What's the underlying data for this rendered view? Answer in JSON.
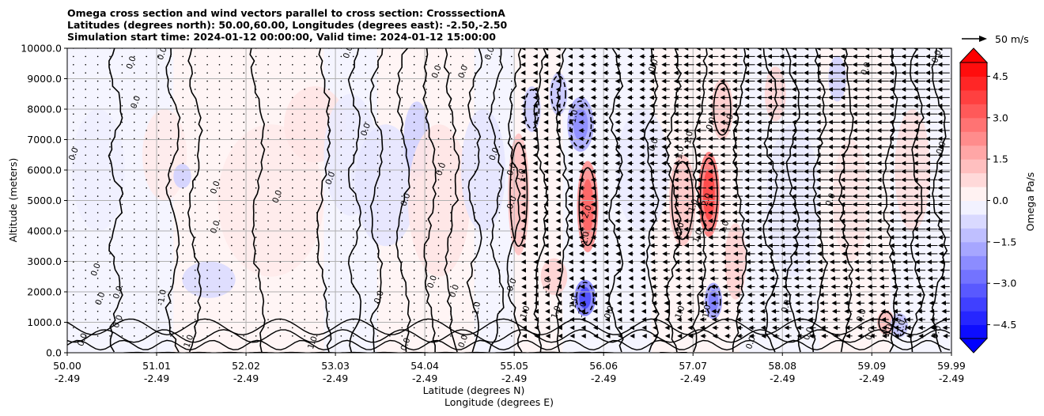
{
  "chart_data": {
    "type": "heatmap",
    "title_lines": [
      "Omega cross section and wind vectors parallel to cross section: CrosssectionA",
      "Latitudes (degrees north): 50.00,60.00, Longitudes (degrees east): -2.50,-2.50",
      "Simulation start time: 2024-01-12 00:00:00, Valid time: 2024-01-12 15:00:00"
    ],
    "ylabel": "Altitude (meters)",
    "xlabel_lat": "Latitude (degrees N)",
    "xlabel_lon": "Longitude (degrees E)",
    "ylim": [
      0,
      10000
    ],
    "xlim": [
      50.0,
      59.99
    ],
    "y_ticks": [
      {
        "value": 0,
        "label": "0.0"
      },
      {
        "value": 1000,
        "label": "1000.0"
      },
      {
        "value": 2000,
        "label": "2000.0"
      },
      {
        "value": 3000,
        "label": "3000.0"
      },
      {
        "value": 4000,
        "label": "4000.0"
      },
      {
        "value": 5000,
        "label": "5000.0"
      },
      {
        "value": 6000,
        "label": "6000.0"
      },
      {
        "value": 7000,
        "label": "7000.0"
      },
      {
        "value": 8000,
        "label": "8000.0"
      },
      {
        "value": 9000,
        "label": "9000.0"
      },
      {
        "value": 10000,
        "label": "10000.0"
      }
    ],
    "x_ticks": [
      {
        "value": 50.0,
        "lat": "50.00",
        "lon": "-2.49"
      },
      {
        "value": 51.01,
        "lat": "51.01",
        "lon": "-2.49"
      },
      {
        "value": 52.02,
        "lat": "52.02",
        "lon": "-2.49"
      },
      {
        "value": 53.03,
        "lat": "53.03",
        "lon": "-2.49"
      },
      {
        "value": 54.04,
        "lat": "54.04",
        "lon": "-2.49"
      },
      {
        "value": 55.05,
        "lat": "55.05",
        "lon": "-2.49"
      },
      {
        "value": 56.06,
        "lat": "56.06",
        "lon": "-2.49"
      },
      {
        "value": 57.07,
        "lat": "57.07",
        "lon": "-2.49"
      },
      {
        "value": 58.08,
        "lat": "58.08",
        "lon": "-2.49"
      },
      {
        "value": 59.09,
        "lat": "59.09",
        "lon": "-2.49"
      },
      {
        "value": 59.99,
        "lat": "59.99",
        "lon": "-2.49"
      }
    ],
    "colorbar": {
      "label": "Omega Pa/s",
      "vmin": -5.0,
      "vmax": 5.0,
      "step": 0.5,
      "ticks": [
        {
          "value": -4.5,
          "label": "−4.5"
        },
        {
          "value": -3.0,
          "label": "−3.0"
        },
        {
          "value": -1.5,
          "label": "−1.5"
        },
        {
          "value": 0.0,
          "label": "0.0"
        },
        {
          "value": 1.5,
          "label": "1.5"
        },
        {
          "value": 3.0,
          "label": "3.0"
        },
        {
          "value": 4.5,
          "label": "4.5"
        }
      ]
    },
    "quiver_key": {
      "label": "50 m/s",
      "speed": 50
    },
    "omega_features": [
      {
        "lat": 50.35,
        "alt": 6000,
        "dlat": 0.3,
        "dalt": 4000,
        "value": -0.3
      },
      {
        "lat": 51.1,
        "alt": 6500,
        "dlat": 0.25,
        "dalt": 3000,
        "value": 0.4
      },
      {
        "lat": 51.3,
        "alt": 5800,
        "dlat": 0.1,
        "dalt": 800,
        "value": -0.9
      },
      {
        "lat": 51.6,
        "alt": 2400,
        "dlat": 0.3,
        "dalt": 1200,
        "value": -0.7
      },
      {
        "lat": 52.3,
        "alt": 5000,
        "dlat": 0.6,
        "dalt": 5000,
        "value": 0.4
      },
      {
        "lat": 52.8,
        "alt": 7500,
        "dlat": 0.35,
        "dalt": 2500,
        "value": 0.5
      },
      {
        "lat": 53.2,
        "alt": 6500,
        "dlat": 0.3,
        "dalt": 4000,
        "value": -0.4
      },
      {
        "lat": 53.6,
        "alt": 5500,
        "dlat": 0.35,
        "dalt": 4000,
        "value": -0.5
      },
      {
        "lat": 53.95,
        "alt": 7000,
        "dlat": 0.15,
        "dalt": 2500,
        "value": -0.9
      },
      {
        "lat": 54.2,
        "alt": 5000,
        "dlat": 0.35,
        "dalt": 5000,
        "value": 0.5
      },
      {
        "lat": 54.7,
        "alt": 6000,
        "dlat": 0.25,
        "dalt": 4000,
        "value": -0.5
      },
      {
        "lat": 55.1,
        "alt": 5200,
        "dlat": 0.12,
        "dalt": 4000,
        "value": 1.2
      },
      {
        "lat": 55.25,
        "alt": 8000,
        "dlat": 0.1,
        "dalt": 1500,
        "value": -1.0
      },
      {
        "lat": 55.55,
        "alt": 8500,
        "dlat": 0.1,
        "dalt": 1400,
        "value": -1.1
      },
      {
        "lat": 55.8,
        "alt": 7500,
        "dlat": 0.15,
        "dalt": 1800,
        "value": -1.6
      },
      {
        "lat": 55.88,
        "alt": 4800,
        "dlat": 0.12,
        "dalt": 3000,
        "value": 2.2
      },
      {
        "lat": 55.85,
        "alt": 1800,
        "dlat": 0.12,
        "dalt": 1200,
        "value": -2.5
      },
      {
        "lat": 55.5,
        "alt": 2500,
        "dlat": 0.15,
        "dalt": 1200,
        "value": 0.9
      },
      {
        "lat": 56.5,
        "alt": 6000,
        "dlat": 0.3,
        "dalt": 4000,
        "value": -0.4
      },
      {
        "lat": 56.95,
        "alt": 5000,
        "dlat": 0.15,
        "dalt": 3000,
        "value": 1.1
      },
      {
        "lat": 57.25,
        "alt": 5200,
        "dlat": 0.12,
        "dalt": 2800,
        "value": 2.6
      },
      {
        "lat": 57.3,
        "alt": 1700,
        "dlat": 0.1,
        "dalt": 1200,
        "value": -1.8
      },
      {
        "lat": 57.4,
        "alt": 8000,
        "dlat": 0.12,
        "dalt": 2000,
        "value": 1.0
      },
      {
        "lat": 57.55,
        "alt": 3000,
        "dlat": 0.12,
        "dalt": 2500,
        "value": 0.9
      },
      {
        "lat": 58.0,
        "alt": 8500,
        "dlat": 0.12,
        "dalt": 1800,
        "value": 0.8
      },
      {
        "lat": 58.2,
        "alt": 5000,
        "dlat": 0.3,
        "dalt": 5000,
        "value": -0.4
      },
      {
        "lat": 58.7,
        "alt": 9000,
        "dlat": 0.1,
        "dalt": 1500,
        "value": -0.9
      },
      {
        "lat": 58.85,
        "alt": 5000,
        "dlat": 0.2,
        "dalt": 4000,
        "value": 0.5
      },
      {
        "lat": 59.25,
        "alt": 1000,
        "dlat": 0.1,
        "dalt": 800,
        "value": 1.3
      },
      {
        "lat": 59.4,
        "alt": 900,
        "dlat": 0.1,
        "dalt": 800,
        "value": -1.2
      },
      {
        "lat": 59.55,
        "alt": 6000,
        "dlat": 0.2,
        "dalt": 4000,
        "value": 0.6
      }
    ],
    "wind_vectors": [
      {
        "lat_start": 55.1,
        "lat_end": 55.3,
        "u": -8
      },
      {
        "lat_start": 55.3,
        "lat_end": 55.75,
        "u": -12
      },
      {
        "lat_start": 55.75,
        "lat_end": 56.6,
        "u": -16
      },
      {
        "lat_start": 56.6,
        "lat_end": 57.0,
        "u": -22
      },
      {
        "lat_start": 57.0,
        "lat_end": 58.0,
        "u": -28
      },
      {
        "lat_start": 58.0,
        "lat_end": 59.99,
        "u": -32
      }
    ],
    "contour_labels": [
      {
        "lat": 51.1,
        "alt": 9800,
        "text": "0.0"
      },
      {
        "lat": 53.2,
        "alt": 9850,
        "text": "0.0"
      },
      {
        "lat": 50.1,
        "alt": 6500,
        "text": "0.0"
      },
      {
        "lat": 51.7,
        "alt": 5400,
        "text": "0.0"
      },
      {
        "lat": 50.35,
        "alt": 2700,
        "text": "0.0"
      },
      {
        "lat": 50.4,
        "alt": 1750,
        "text": "0.0"
      },
      {
        "lat": 50.6,
        "alt": 1950,
        "text": "0.0"
      },
      {
        "lat": 51.1,
        "alt": 1800,
        "text": "-1.0"
      },
      {
        "lat": 50.75,
        "alt": 9500,
        "text": "0.0"
      },
      {
        "lat": 50.8,
        "alt": 8200,
        "text": "0.0"
      },
      {
        "lat": 52.4,
        "alt": 5100,
        "text": "0.0"
      },
      {
        "lat": 51.7,
        "alt": 4100,
        "text": "0.0"
      },
      {
        "lat": 53.0,
        "alt": 5700,
        "text": "0.0"
      },
      {
        "lat": 53.4,
        "alt": 7300,
        "text": "0.0"
      },
      {
        "lat": 54.2,
        "alt": 9200,
        "text": "0.0"
      },
      {
        "lat": 54.5,
        "alt": 9200,
        "text": "0.0"
      },
      {
        "lat": 54.8,
        "alt": 9800,
        "text": "0.0"
      },
      {
        "lat": 53.85,
        "alt": 5000,
        "text": "0.0"
      },
      {
        "lat": 54.25,
        "alt": 6000,
        "text": "0.0"
      },
      {
        "lat": 54.85,
        "alt": 6500,
        "text": "0.0"
      },
      {
        "lat": 55.05,
        "alt": 6000,
        "text": "0.0"
      },
      {
        "lat": 55.15,
        "alt": 5800,
        "text": "1.0"
      },
      {
        "lat": 55.05,
        "alt": 4900,
        "text": "0.0"
      },
      {
        "lat": 55.9,
        "alt": 4600,
        "text": "2.0"
      },
      {
        "lat": 55.75,
        "alt": 7700,
        "text": "-1.0"
      },
      {
        "lat": 55.88,
        "alt": 3700,
        "text": "-1.0"
      },
      {
        "lat": 55.45,
        "alt": 2200,
        "text": "-1.0"
      },
      {
        "lat": 55.75,
        "alt": 1600,
        "text": "-1.0"
      },
      {
        "lat": 55.55,
        "alt": 1300,
        "text": "1.0"
      },
      {
        "lat": 55.85,
        "alt": 1400,
        "text": "-2.0"
      },
      {
        "lat": 55.2,
        "alt": 1300,
        "text": "1.0"
      },
      {
        "lat": 54.15,
        "alt": 2300,
        "text": "0.0"
      },
      {
        "lat": 53.55,
        "alt": 1800,
        "text": "0.0"
      },
      {
        "lat": 54.4,
        "alt": 2000,
        "text": "0.0"
      },
      {
        "lat": 54.65,
        "alt": 1400,
        "text": "-1.0"
      },
      {
        "lat": 55.05,
        "alt": 2200,
        "text": "0.0"
      },
      {
        "lat": 56.15,
        "alt": 1300,
        "text": "0.0"
      },
      {
        "lat": 56.65,
        "alt": 6800,
        "text": "0.0"
      },
      {
        "lat": 56.65,
        "alt": 9400,
        "text": "0.0"
      },
      {
        "lat": 56.95,
        "alt": 6500,
        "text": "-1.0"
      },
      {
        "lat": 56.95,
        "alt": 4000,
        "text": "-1.0"
      },
      {
        "lat": 57.1,
        "alt": 4800,
        "text": "1.0"
      },
      {
        "lat": 57.05,
        "alt": 7000,
        "text": "-1.0"
      },
      {
        "lat": 57.25,
        "alt": 5000,
        "text": "2.0"
      },
      {
        "lat": 57.3,
        "alt": 7500,
        "text": "0.0"
      },
      {
        "lat": 57.5,
        "alt": 7600,
        "text": "1.0"
      },
      {
        "lat": 56.95,
        "alt": 1300,
        "text": "1.0"
      },
      {
        "lat": 57.25,
        "alt": 1300,
        "text": "-1.0"
      },
      {
        "lat": 57.15,
        "alt": 3800,
        "text": "1.0"
      },
      {
        "lat": 57.45,
        "alt": 4100,
        "text": "1.0"
      },
      {
        "lat": 58.15,
        "alt": 1500,
        "text": "0.0"
      },
      {
        "lat": 58.4,
        "alt": 600,
        "text": "0.0"
      },
      {
        "lat": 58.65,
        "alt": 5000,
        "text": "0.0"
      },
      {
        "lat": 59.05,
        "alt": 9300,
        "text": "0.0"
      },
      {
        "lat": 59.0,
        "alt": 1200,
        "text": "0.0"
      },
      {
        "lat": 59.1,
        "alt": 600,
        "text": "0.0"
      },
      {
        "lat": 59.3,
        "alt": 700,
        "text": "1.0"
      },
      {
        "lat": 59.45,
        "alt": 800,
        "text": "-1.0"
      },
      {
        "lat": 59.85,
        "alt": 650,
        "text": "0.0"
      },
      {
        "lat": 59.9,
        "alt": 6700,
        "text": "0.0"
      },
      {
        "lat": 59.85,
        "alt": 9700,
        "text": "0.0"
      },
      {
        "lat": 57.75,
        "alt": 300,
        "text": "0.0"
      },
      {
        "lat": 54.5,
        "alt": 350,
        "text": "0.0"
      },
      {
        "lat": 53.85,
        "alt": 250,
        "text": "0.0"
      },
      {
        "lat": 51.4,
        "alt": 350,
        "text": "1.0"
      },
      {
        "lat": 52.8,
        "alt": 300,
        "text": "1.0"
      },
      {
        "lat": 50.2,
        "alt": 400,
        "text": "0.0"
      },
      {
        "lat": 50.6,
        "alt": 1000,
        "text": "0.0"
      }
    ]
  }
}
